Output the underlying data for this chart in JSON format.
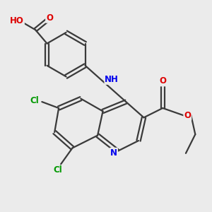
{
  "background_color": "#EBEBEB",
  "bond_color": "#3A3A3A",
  "bond_width": 1.6,
  "atom_colors": {
    "C": "#3A3A3A",
    "H": "#707070",
    "N": "#0000EE",
    "O": "#DD0000",
    "Cl": "#009900"
  },
  "font_size": 8.5,
  "figsize": [
    3.0,
    3.0
  ],
  "dpi": 100
}
